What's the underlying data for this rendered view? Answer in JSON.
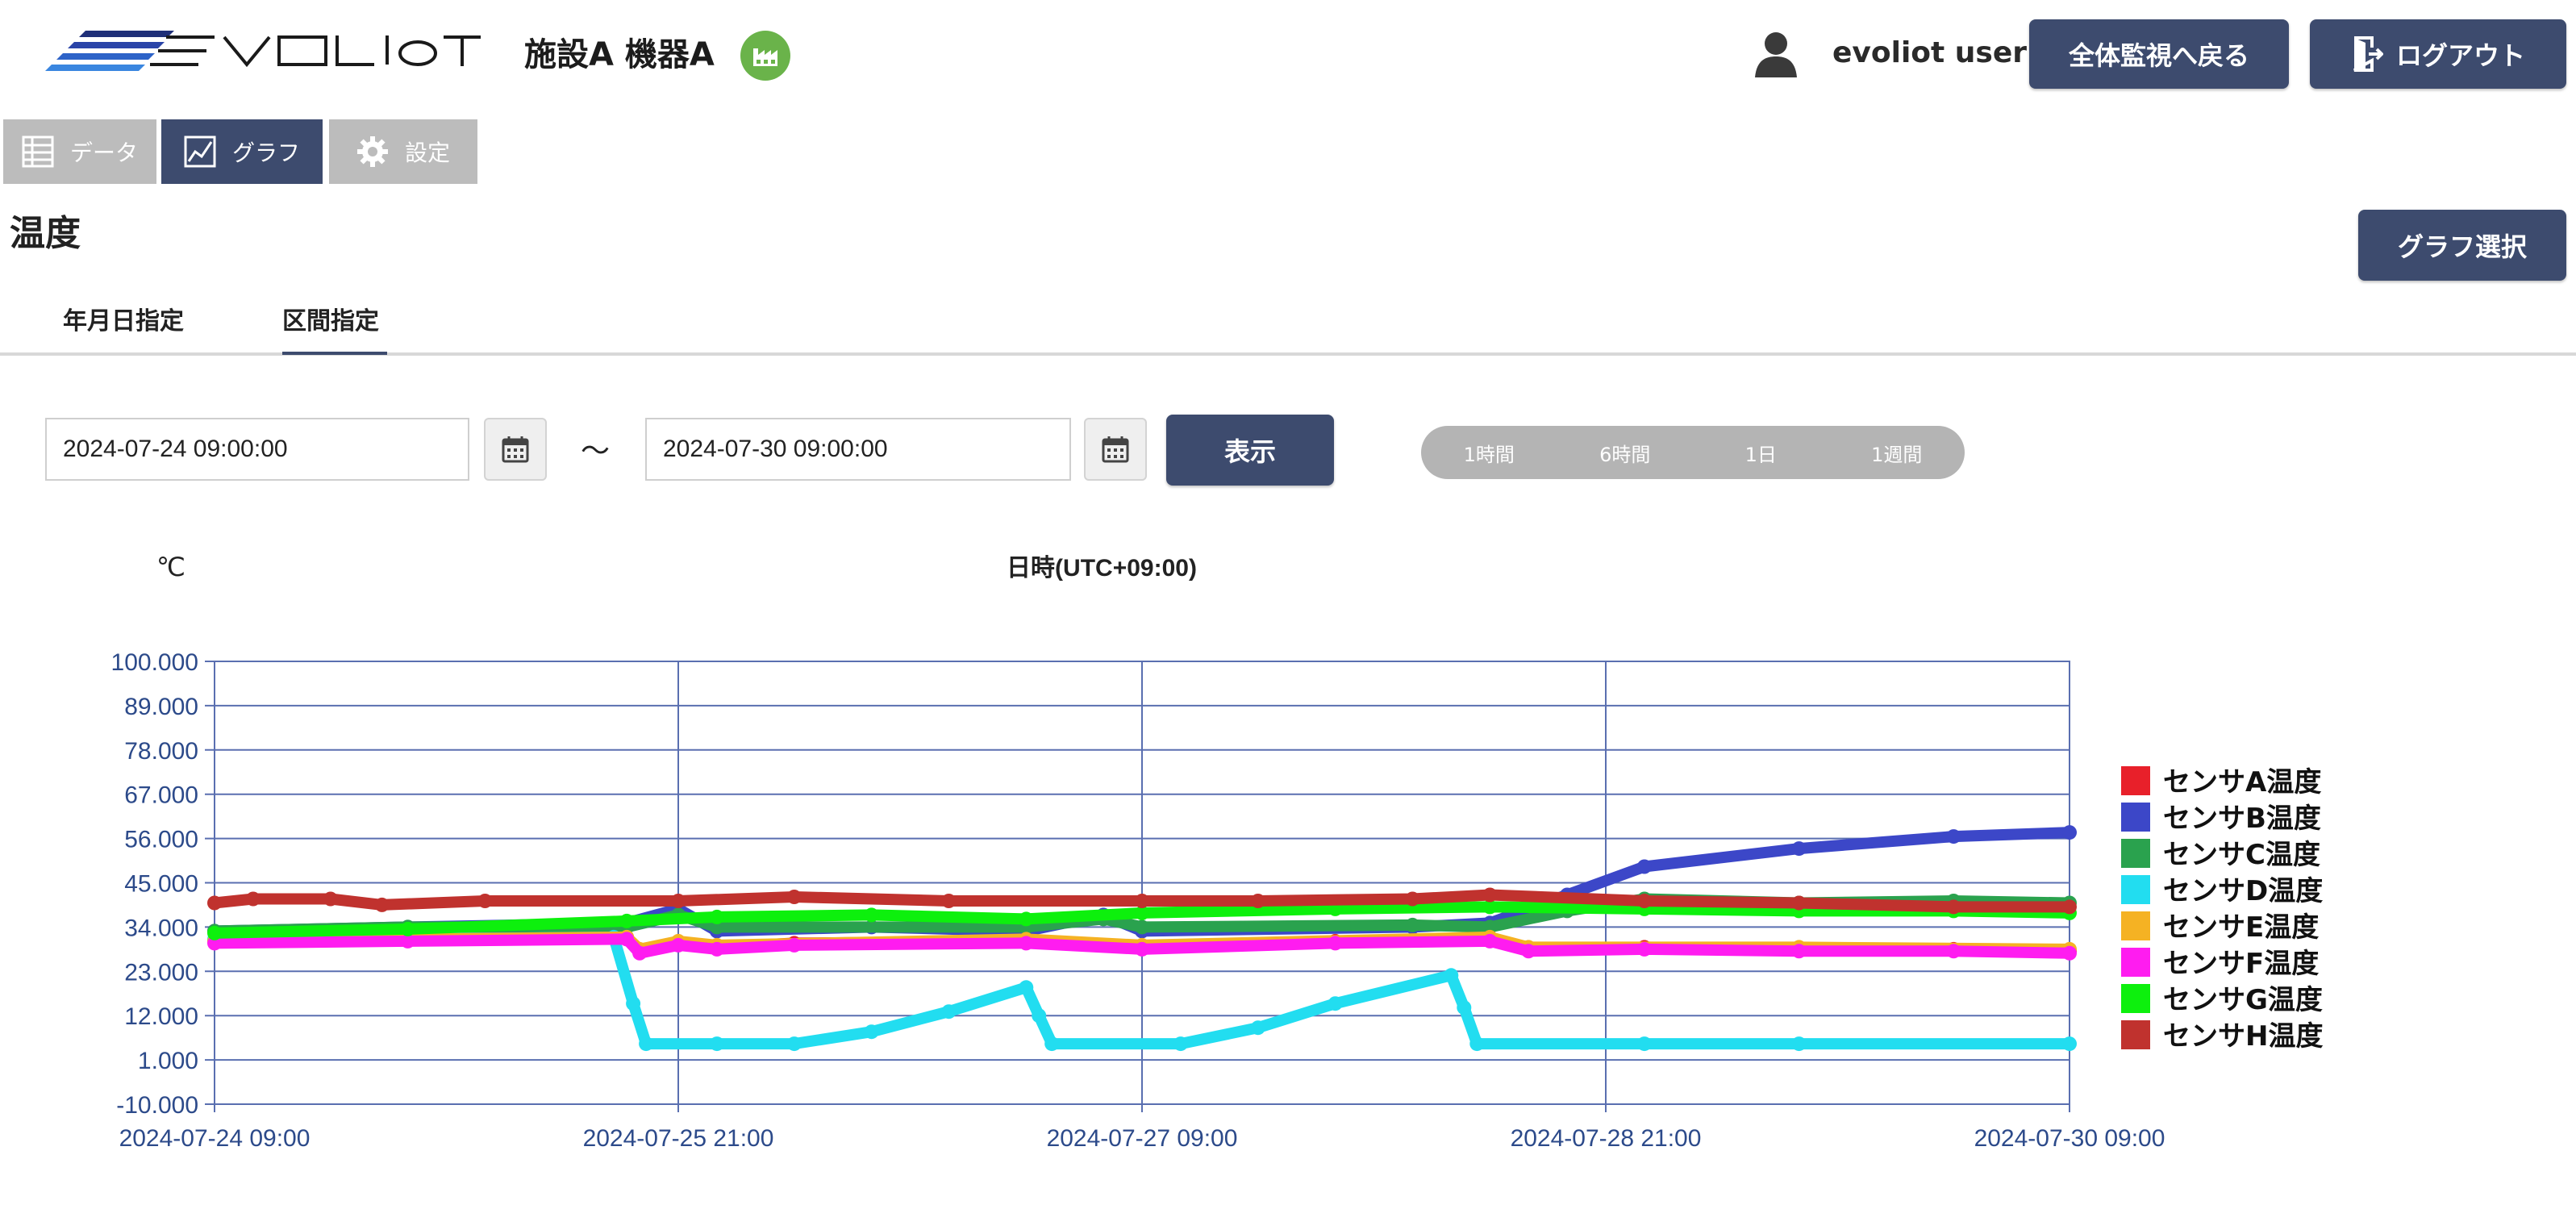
{
  "header": {
    "logo_text": "EVOLIoT",
    "facility_title": "施設A 機器A",
    "user_name": "evoliot user",
    "back_label": "全体監視へ戻る",
    "logout_label": "ログアウト"
  },
  "nav": {
    "data_label": "データ",
    "graph_label": "グラフ",
    "settings_label": "設定"
  },
  "page": {
    "title": "温度",
    "graph_select_label": "グラフ選択"
  },
  "subtabs": {
    "date_label": "年月日指定",
    "range_label": "区間指定"
  },
  "range_form": {
    "start_value": "2024-07-24 09:00:00",
    "end_value": "2024-07-30 09:00:00",
    "tilde": "～",
    "show_label": "表示",
    "quick_ranges": [
      "1時間",
      "6時間",
      "1日",
      "1週間"
    ]
  },
  "colors": {
    "primary": "#3d4b6e",
    "inactive_tab": "#bcbcbc",
    "badge_green": "#6ab34a",
    "axis_text": "#2c4a8a"
  },
  "chart_data": {
    "type": "line",
    "ylabel": "℃",
    "xlabel": "日時(UTC+09:00)",
    "ylim": [
      -10,
      100
    ],
    "yticks": [
      "100.000",
      "89.000",
      "78.000",
      "67.000",
      "56.000",
      "45.000",
      "34.000",
      "23.000",
      "12.000",
      "1.000",
      "-10.000"
    ],
    "x_range": [
      "2024-07-24 09:00",
      "2024-07-30 09:00"
    ],
    "xticks": [
      "2024-07-24 09:00",
      "2024-07-25 21:00",
      "2024-07-27 09:00",
      "2024-07-28 21:00",
      "2024-07-30 09:00"
    ],
    "grid": true,
    "legend_position": "right",
    "series": [
      {
        "name": "センサA温度",
        "color": "#e8202a",
        "points": [
          [
            "2024-07-24 09:00",
            30.5
          ],
          [
            "2024-07-25 00:00",
            31
          ],
          [
            "2024-07-25 17:00",
            31.5
          ],
          [
            "2024-07-25 18:00",
            28
          ],
          [
            "2024-07-25 21:00",
            30
          ],
          [
            "2024-07-26 00:00",
            29
          ],
          [
            "2024-07-26 06:00",
            30
          ],
          [
            "2024-07-27 00:00",
            30.5
          ],
          [
            "2024-07-27 09:00",
            29
          ],
          [
            "2024-07-28 00:00",
            30.5
          ],
          [
            "2024-07-28 12:00",
            31
          ],
          [
            "2024-07-28 15:00",
            28.5
          ],
          [
            "2024-07-29 00:00",
            29
          ],
          [
            "2024-07-29 12:00",
            28.5
          ],
          [
            "2024-07-30 00:00",
            28.5
          ],
          [
            "2024-07-30 09:00",
            28
          ]
        ]
      },
      {
        "name": "センサB温度",
        "color": "#3c47c8",
        "points": [
          [
            "2024-07-24 09:00",
            33
          ],
          [
            "2024-07-25 00:00",
            34
          ],
          [
            "2024-07-25 17:00",
            35
          ],
          [
            "2024-07-25 21:00",
            38.5
          ],
          [
            "2024-07-26 00:00",
            33
          ],
          [
            "2024-07-26 12:00",
            34
          ],
          [
            "2024-07-27 00:00",
            33
          ],
          [
            "2024-07-27 06:00",
            37
          ],
          [
            "2024-07-27 09:00",
            33
          ],
          [
            "2024-07-28 06:00",
            34
          ],
          [
            "2024-07-28 12:00",
            35
          ],
          [
            "2024-07-28 18:00",
            42
          ],
          [
            "2024-07-29 00:00",
            49
          ],
          [
            "2024-07-29 12:00",
            53.5
          ],
          [
            "2024-07-30 00:00",
            56.5
          ],
          [
            "2024-07-30 09:00",
            57.5
          ]
        ]
      },
      {
        "name": "センサC温度",
        "color": "#2aa24e",
        "points": [
          [
            "2024-07-24 09:00",
            33
          ],
          [
            "2024-07-25 00:00",
            34
          ],
          [
            "2024-07-25 17:00",
            34
          ],
          [
            "2024-07-25 21:00",
            37
          ],
          [
            "2024-07-26 00:00",
            34
          ],
          [
            "2024-07-27 00:00",
            34
          ],
          [
            "2024-07-27 06:00",
            36
          ],
          [
            "2024-07-27 09:00",
            34
          ],
          [
            "2024-07-28 06:00",
            34.5
          ],
          [
            "2024-07-28 12:00",
            34
          ],
          [
            "2024-07-28 18:00",
            38
          ],
          [
            "2024-07-29 00:00",
            41
          ],
          [
            "2024-07-29 12:00",
            40
          ],
          [
            "2024-07-30 00:00",
            40.5
          ],
          [
            "2024-07-30 09:00",
            40
          ]
        ]
      },
      {
        "name": "センサD温度",
        "color": "#22ddf0",
        "points": [
          [
            "2024-07-24 09:00",
            31
          ],
          [
            "2024-07-25 00:00",
            31
          ],
          [
            "2024-07-25 16:00",
            31.5
          ],
          [
            "2024-07-25 17:30",
            15
          ],
          [
            "2024-07-25 18:30",
            5
          ],
          [
            "2024-07-26 00:00",
            5
          ],
          [
            "2024-07-26 06:00",
            5
          ],
          [
            "2024-07-26 12:00",
            8
          ],
          [
            "2024-07-26 18:00",
            13
          ],
          [
            "2024-07-27 00:00",
            19
          ],
          [
            "2024-07-27 01:00",
            12
          ],
          [
            "2024-07-27 02:00",
            5
          ],
          [
            "2024-07-27 12:00",
            5
          ],
          [
            "2024-07-27 18:00",
            9
          ],
          [
            "2024-07-28 00:00",
            15
          ],
          [
            "2024-07-28 09:00",
            22
          ],
          [
            "2024-07-28 10:00",
            14
          ],
          [
            "2024-07-28 11:00",
            5
          ],
          [
            "2024-07-29 00:00",
            5
          ],
          [
            "2024-07-29 12:00",
            5
          ],
          [
            "2024-07-30 09:00",
            5
          ]
        ]
      },
      {
        "name": "センサE温度",
        "color": "#f5b223",
        "points": [
          [
            "2024-07-24 09:00",
            30.5
          ],
          [
            "2024-07-25 17:00",
            31.5
          ],
          [
            "2024-07-25 18:00",
            28.5
          ],
          [
            "2024-07-25 21:00",
            30.5
          ],
          [
            "2024-07-26 00:00",
            29.5
          ],
          [
            "2024-07-27 00:00",
            31
          ],
          [
            "2024-07-27 09:00",
            29.5
          ],
          [
            "2024-07-28 12:00",
            31.5
          ],
          [
            "2024-07-28 15:00",
            29
          ],
          [
            "2024-07-29 12:00",
            29
          ],
          [
            "2024-07-30 09:00",
            28.5
          ]
        ]
      },
      {
        "name": "センサF温度",
        "color": "#ff1cf0",
        "points": [
          [
            "2024-07-24 09:00",
            30
          ],
          [
            "2024-07-25 00:00",
            30.5
          ],
          [
            "2024-07-25 17:00",
            31
          ],
          [
            "2024-07-25 18:00",
            27.5
          ],
          [
            "2024-07-25 21:00",
            29.5
          ],
          [
            "2024-07-26 00:00",
            28.5
          ],
          [
            "2024-07-26 06:00",
            29.5
          ],
          [
            "2024-07-27 00:00",
            30
          ],
          [
            "2024-07-27 09:00",
            28.5
          ],
          [
            "2024-07-28 00:00",
            30
          ],
          [
            "2024-07-28 12:00",
            30.5
          ],
          [
            "2024-07-28 15:00",
            28
          ],
          [
            "2024-07-29 00:00",
            28.5
          ],
          [
            "2024-07-29 12:00",
            28
          ],
          [
            "2024-07-30 00:00",
            28
          ],
          [
            "2024-07-30 09:00",
            27.5
          ]
        ]
      },
      {
        "name": "センサG温度",
        "color": "#0df00d",
        "points": [
          [
            "2024-07-24 09:00",
            32.5
          ],
          [
            "2024-07-25 00:00",
            33.5
          ],
          [
            "2024-07-25 17:00",
            35.5
          ],
          [
            "2024-07-26 00:00",
            36.5
          ],
          [
            "2024-07-26 12:00",
            37
          ],
          [
            "2024-07-27 00:00",
            36
          ],
          [
            "2024-07-27 09:00",
            37.5
          ],
          [
            "2024-07-28 00:00",
            38.5
          ],
          [
            "2024-07-28 12:00",
            39
          ],
          [
            "2024-07-29 00:00",
            38.5
          ],
          [
            "2024-07-29 12:00",
            38
          ],
          [
            "2024-07-30 00:00",
            38
          ],
          [
            "2024-07-30 09:00",
            37.5
          ]
        ]
      },
      {
        "name": "センサH温度",
        "color": "#c0322e",
        "points": [
          [
            "2024-07-24 09:00",
            40
          ],
          [
            "2024-07-24 12:00",
            41
          ],
          [
            "2024-07-24 18:00",
            41
          ],
          [
            "2024-07-24 22:00",
            39.5
          ],
          [
            "2024-07-25 06:00",
            40.5
          ],
          [
            "2024-07-25 21:00",
            40.5
          ],
          [
            "2024-07-26 06:00",
            41.5
          ],
          [
            "2024-07-26 18:00",
            40.5
          ],
          [
            "2024-07-27 09:00",
            40.5
          ],
          [
            "2024-07-27 18:00",
            40.5
          ],
          [
            "2024-07-28 06:00",
            41
          ],
          [
            "2024-07-28 12:00",
            42
          ],
          [
            "2024-07-29 00:00",
            40.5
          ],
          [
            "2024-07-29 12:00",
            40
          ],
          [
            "2024-07-30 00:00",
            39
          ],
          [
            "2024-07-30 09:00",
            39
          ]
        ]
      }
    ]
  }
}
